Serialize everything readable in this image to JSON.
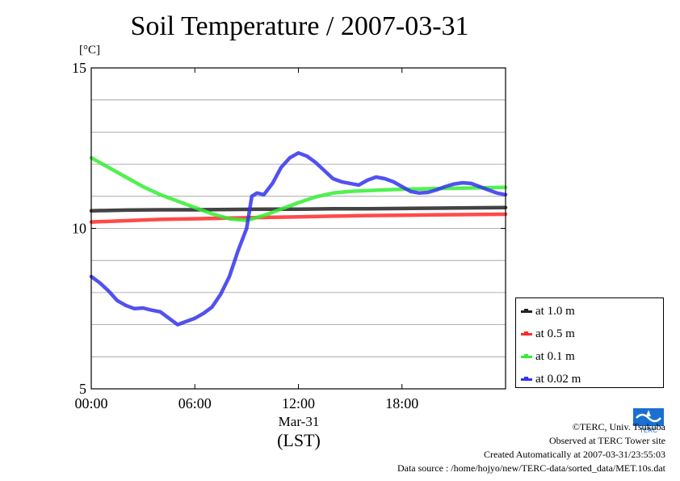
{
  "chart_data": {
    "type": "line",
    "title": "Soil Temperature / 2007-03-31",
    "ylabel": "[°C]",
    "xlabel": "(LST)",
    "x_date_label": "Mar-31",
    "xlim": [
      0,
      24
    ],
    "ylim": [
      5,
      15
    ],
    "x_ticks": [
      {
        "value": 0,
        "label": "00:00"
      },
      {
        "value": 6,
        "label": "06:00"
      },
      {
        "value": 12,
        "label": "12:00"
      },
      {
        "value": 18,
        "label": "18:00"
      }
    ],
    "y_ticks": [
      {
        "value": 5,
        "label": "5"
      },
      {
        "value": 10,
        "label": "10"
      },
      {
        "value": 15,
        "label": "15"
      }
    ],
    "y_gridlines": [
      6,
      7,
      8,
      9,
      10,
      11,
      12,
      13,
      14
    ],
    "grid": true,
    "legend_position": "bottom-right, outside plot",
    "series": [
      {
        "name": "at 1.0 m",
        "color": "#222222",
        "points": [
          [
            0,
            10.55
          ],
          [
            2,
            10.57
          ],
          [
            4,
            10.58
          ],
          [
            6,
            10.58
          ],
          [
            8,
            10.59
          ],
          [
            10,
            10.6
          ],
          [
            12,
            10.6
          ],
          [
            14,
            10.61
          ],
          [
            16,
            10.61
          ],
          [
            18,
            10.62
          ],
          [
            20,
            10.63
          ],
          [
            22,
            10.64
          ],
          [
            24,
            10.65
          ]
        ]
      },
      {
        "name": "at 0.5 m",
        "color": "#ff2a2a",
        "points": [
          [
            0,
            10.2
          ],
          [
            2,
            10.24
          ],
          [
            4,
            10.28
          ],
          [
            6,
            10.3
          ],
          [
            8,
            10.32
          ],
          [
            10,
            10.34
          ],
          [
            12,
            10.36
          ],
          [
            14,
            10.38
          ],
          [
            16,
            10.4
          ],
          [
            18,
            10.41
          ],
          [
            20,
            10.42
          ],
          [
            22,
            10.43
          ],
          [
            24,
            10.44
          ]
        ]
      },
      {
        "name": "at 0.1 m",
        "color": "#33ee33",
        "points": [
          [
            0,
            12.2
          ],
          [
            1,
            11.9
          ],
          [
            2,
            11.6
          ],
          [
            3,
            11.3
          ],
          [
            4,
            11.05
          ],
          [
            5,
            10.85
          ],
          [
            6,
            10.65
          ],
          [
            7,
            10.45
          ],
          [
            8,
            10.3
          ],
          [
            9,
            10.25
          ],
          [
            10,
            10.4
          ],
          [
            11,
            10.6
          ],
          [
            12,
            10.8
          ],
          [
            13,
            10.98
          ],
          [
            14,
            11.1
          ],
          [
            15,
            11.15
          ],
          [
            16,
            11.18
          ],
          [
            17,
            11.2
          ],
          [
            18,
            11.22
          ],
          [
            19,
            11.23
          ],
          [
            20,
            11.24
          ],
          [
            21,
            11.25
          ],
          [
            22,
            11.26
          ],
          [
            23,
            11.27
          ],
          [
            24,
            11.28
          ]
        ]
      },
      {
        "name": "at 0.02 m",
        "color": "#3333ee",
        "points": [
          [
            0,
            8.5
          ],
          [
            0.5,
            8.3
          ],
          [
            1,
            8.05
          ],
          [
            1.5,
            7.75
          ],
          [
            2,
            7.6
          ],
          [
            2.5,
            7.5
          ],
          [
            3,
            7.52
          ],
          [
            3.5,
            7.45
          ],
          [
            4,
            7.4
          ],
          [
            4.5,
            7.2
          ],
          [
            5,
            7.0
          ],
          [
            5.5,
            7.1
          ],
          [
            6,
            7.2
          ],
          [
            6.5,
            7.35
          ],
          [
            7,
            7.55
          ],
          [
            7.5,
            7.95
          ],
          [
            8,
            8.5
          ],
          [
            8.5,
            9.3
          ],
          [
            9,
            10.0
          ],
          [
            9.3,
            11.0
          ],
          [
            9.6,
            11.1
          ],
          [
            10,
            11.05
          ],
          [
            10.5,
            11.4
          ],
          [
            11,
            11.9
          ],
          [
            11.5,
            12.2
          ],
          [
            12,
            12.35
          ],
          [
            12.5,
            12.25
          ],
          [
            13,
            12.05
          ],
          [
            13.5,
            11.8
          ],
          [
            14,
            11.55
          ],
          [
            14.5,
            11.45
          ],
          [
            15,
            11.4
          ],
          [
            15.5,
            11.35
          ],
          [
            16,
            11.5
          ],
          [
            16.5,
            11.6
          ],
          [
            17,
            11.55
          ],
          [
            17.5,
            11.45
          ],
          [
            18,
            11.3
          ],
          [
            18.5,
            11.15
          ],
          [
            19,
            11.1
          ],
          [
            19.5,
            11.12
          ],
          [
            20,
            11.2
          ],
          [
            20.5,
            11.3
          ],
          [
            21,
            11.38
          ],
          [
            21.5,
            11.42
          ],
          [
            22,
            11.4
          ],
          [
            22.5,
            11.3
          ],
          [
            23,
            11.2
          ],
          [
            23.5,
            11.1
          ],
          [
            24,
            11.05
          ]
        ]
      }
    ]
  },
  "credits": {
    "copyright": "©TERC, Univ. Tsukuba",
    "site": "Observed at TERC Tower site",
    "created": "Created Automatically at 2007-03-31/23:55:03",
    "source": "Data source : /home/hojyo/new/TERC-data/sorted_data/MET.10s.dat"
  },
  "logo": {
    "text": "TERC",
    "color": "#1a6fd1"
  }
}
